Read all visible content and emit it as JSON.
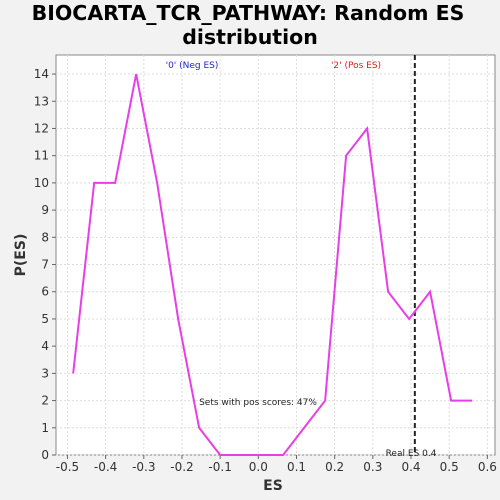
{
  "chart_data": {
    "type": "line",
    "title_line1": "BIOCARTA_TCR_PATHWAY: Random ES",
    "title_line2": "distribution",
    "xlabel": "ES",
    "ylabel": "P(ES)",
    "xlim": [
      -0.53,
      0.62
    ],
    "ylim": [
      0,
      14.7
    ],
    "xticks": [
      -0.5,
      -0.4,
      -0.3,
      -0.2,
      -0.1,
      0.0,
      0.1,
      0.2,
      0.3,
      0.4,
      0.5,
      0.6
    ],
    "xtick_labels": [
      "-0.5",
      "-0.4",
      "-0.3",
      "-0.2",
      "-0.1",
      "0.0",
      "0.1",
      "0.2",
      "0.3",
      "0.4",
      "0.5",
      "0.6"
    ],
    "yticks": [
      0,
      1,
      2,
      3,
      4,
      5,
      6,
      7,
      8,
      9,
      10,
      11,
      12,
      13,
      14
    ],
    "grid": true,
    "series": [
      {
        "color": "#e83ee8",
        "x": [
          -0.485,
          -0.43,
          -0.375,
          -0.32,
          -0.265,
          -0.21,
          -0.155,
          -0.1,
          -0.045,
          0.01,
          0.065,
          0.12,
          0.175,
          0.23,
          0.285,
          0.34,
          0.395,
          0.45,
          0.505,
          0.56
        ],
        "y": [
          3,
          10,
          10,
          14,
          10,
          5,
          1,
          0,
          0,
          0,
          0,
          1,
          2,
          11,
          12,
          6,
          5,
          6,
          2,
          2
        ]
      }
    ],
    "real_es": 0.41,
    "annotations": {
      "neg_label": "'0' (Neg ES)",
      "neg_color": "#2222cc",
      "pos_label": "'2' (Pos ES)",
      "pos_color": "#dd2222",
      "pos_scores": "Sets with pos scores: 47%",
      "real_es_label": "Real ES 0.4"
    }
  }
}
